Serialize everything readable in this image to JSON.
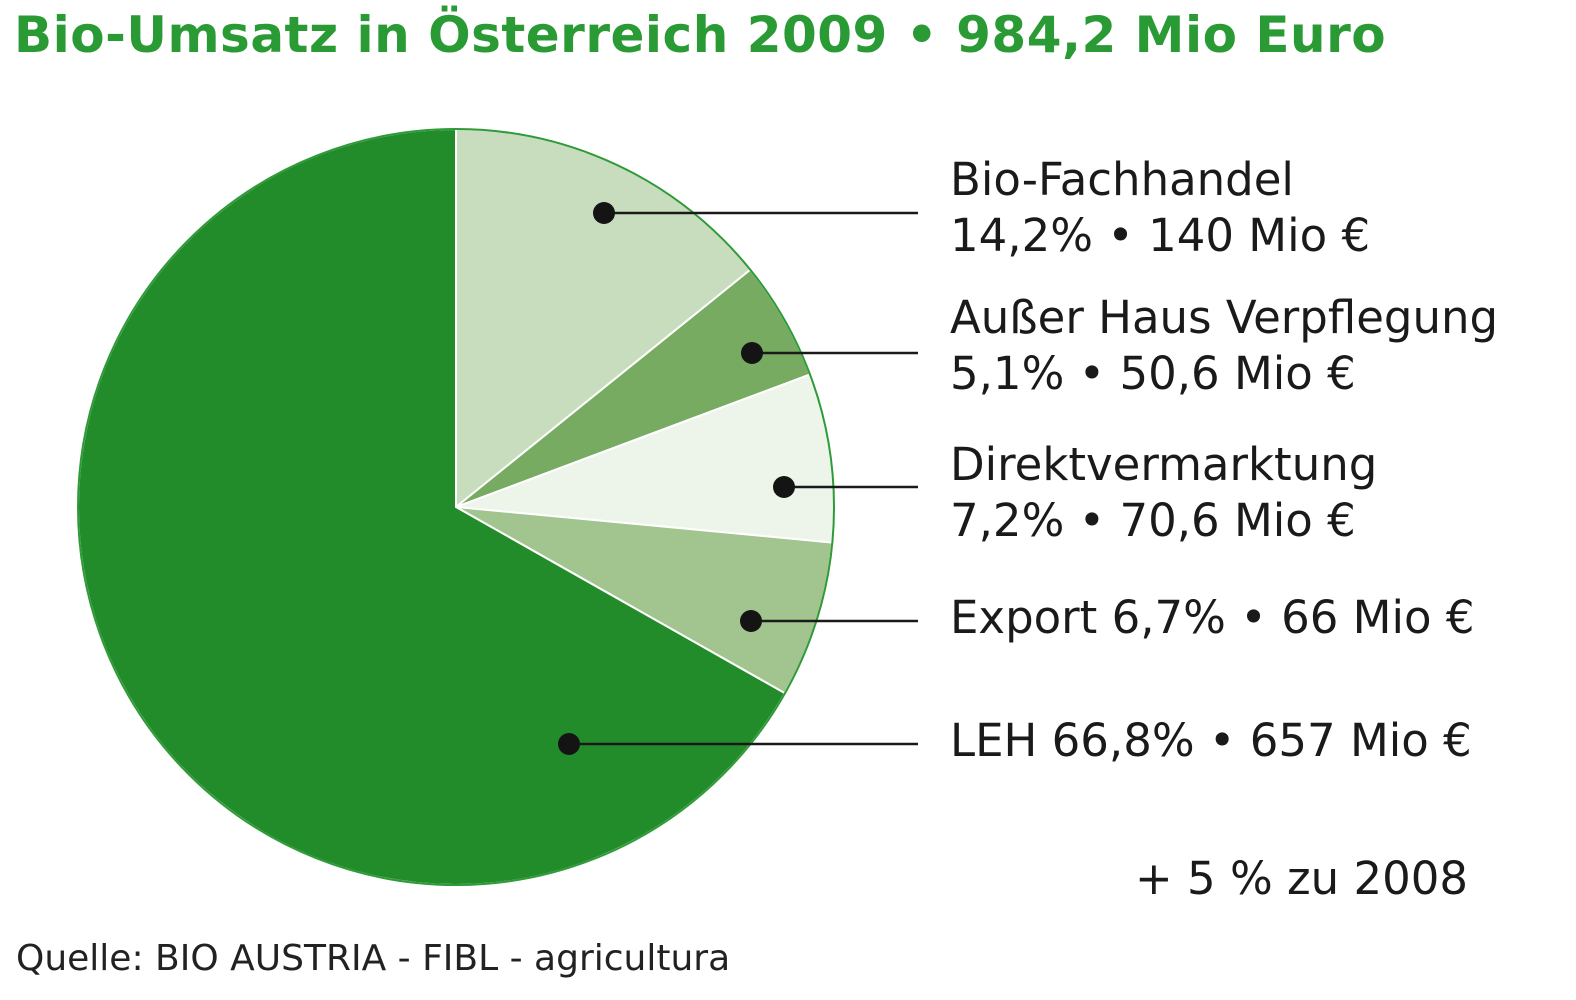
{
  "chart_data": {
    "type": "pie",
    "title": "Bio-Umsatz in Österreich 2009 • 984,2 Mio Euro",
    "total_mio_euro": 984.2,
    "start": "top",
    "direction": "clockwise",
    "slices": [
      {
        "name": "Bio-Fachhandel",
        "percent": 14.2,
        "value_mio_euro": 140,
        "line1": "Bio-Fachhandel",
        "line2": "14,2% • 140 Mio €",
        "color": "#c8dcbe"
      },
      {
        "name": "Außer Haus Verpflegung",
        "percent": 5.1,
        "value_mio_euro": 50.6,
        "line1": "Außer Haus Verpflegung",
        "line2": "5,1% • 50,6 Mio €",
        "color": "#76ab61"
      },
      {
        "name": "Direktvermarktung",
        "percent": 7.2,
        "value_mio_euro": 70.6,
        "line1": "Direktvermarktung",
        "line2": "7,2% • 70,6 Mio €",
        "color": "#edf4e9"
      },
      {
        "name": "Export",
        "percent": 6.7,
        "value_mio_euro": 66,
        "line1": "Export 6,7% • 66 Mio €",
        "line2": "",
        "color": "#a2c48e"
      },
      {
        "name": "LEH",
        "percent": 66.8,
        "value_mio_euro": 657,
        "line1": "LEH 66,8% • 657 Mio €",
        "line2": "",
        "color": "#228b2a"
      }
    ],
    "annotation": "+ 5 % zu 2008",
    "source": "Quelle: BIO AUSTRIA - FIBL - agricultura",
    "title_color": "#2a9a35"
  }
}
